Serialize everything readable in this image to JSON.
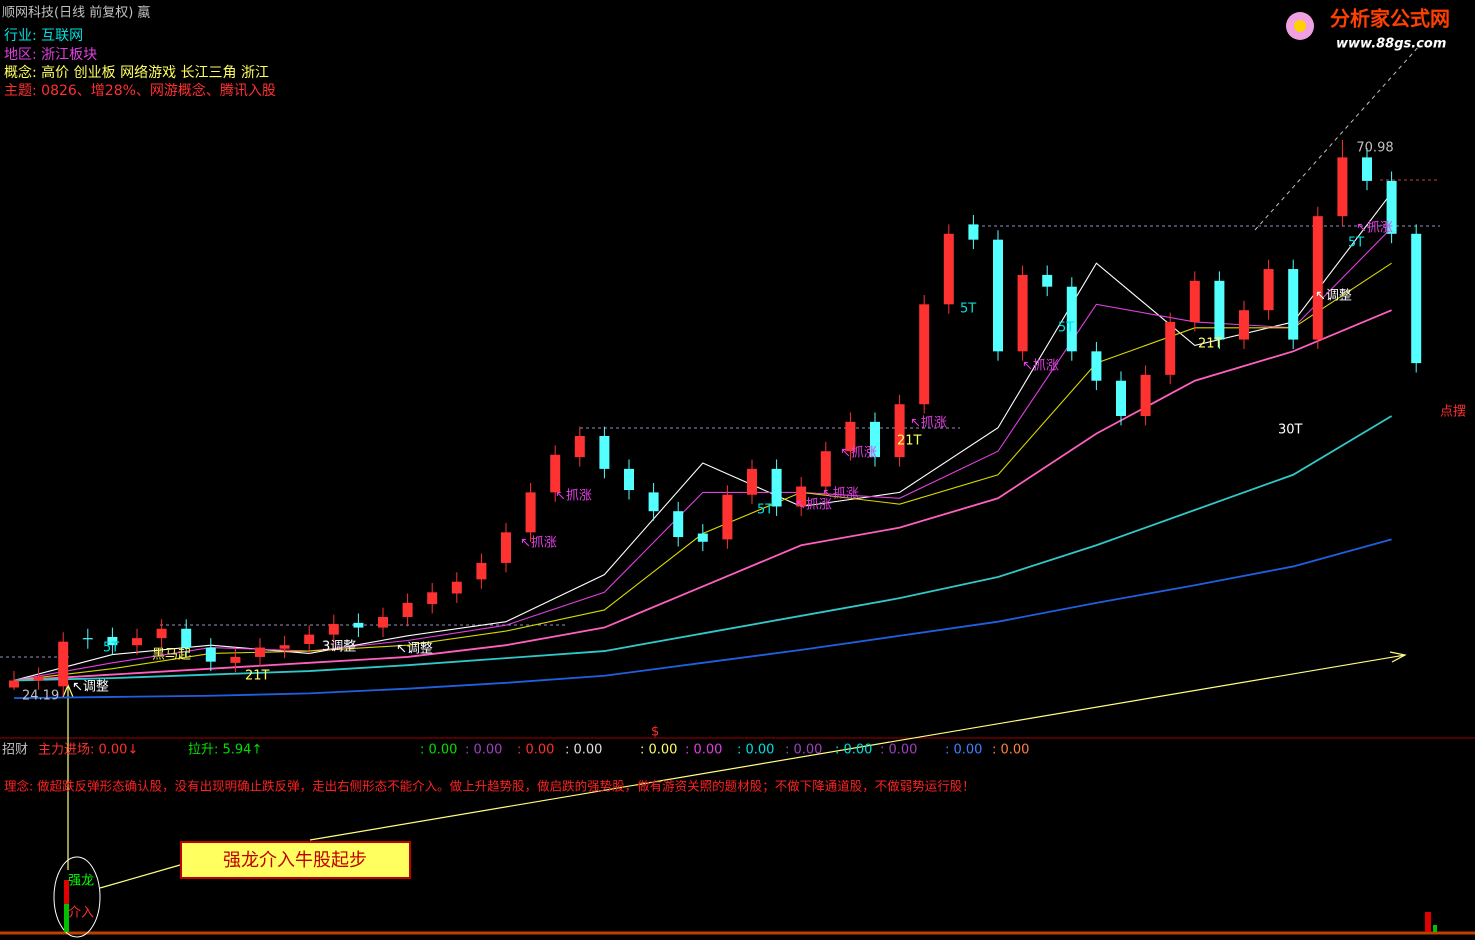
{
  "header": {
    "title": "顺网科技(日线 前复权) 蠃",
    "industry": "行业: 互联网",
    "region": "地区: 浙江板块",
    "concept": "概念: 高价 创业板 网络游戏 长江三角 浙江",
    "theme": "主题: 0826、增28%、网游概念、腾讯入股"
  },
  "logo": {
    "name": "分析家公式网",
    "url": "www.88gs.com"
  },
  "chart_data": {
    "type": "candlestick",
    "open": [
      24.4,
      25.0,
      24.5,
      28.6,
      28.7,
      28.0,
      28.6,
      29.4,
      27.8,
      26.5,
      27.0,
      27.7,
      28.1,
      28.9,
      29.9,
      29.5,
      30.4,
      31.5,
      32.4,
      33.6,
      35.0,
      37.6,
      41.0,
      44.0,
      45.8,
      43.0,
      41.0,
      39.4,
      37.5,
      37.0,
      40.8,
      43.0,
      39.8,
      41.5,
      44.5,
      47.0,
      44.0,
      48.5,
      57.0,
      63.8,
      62.5,
      53.0,
      59.5,
      58.5,
      53.0,
      50.5,
      47.5,
      51.0,
      55.5,
      59.0,
      54.0,
      56.5,
      60.0,
      54.0,
      64.5,
      69.5,
      67.5,
      63.0
    ],
    "high": [
      25.8,
      26.1,
      29.1,
      29.4,
      29.5,
      29.4,
      30.2,
      30.2,
      28.6,
      27.8,
      28.6,
      28.8,
      29.7,
      30.6,
      30.7,
      31.2,
      32.4,
      33.3,
      34.2,
      35.8,
      38.4,
      41.8,
      45.0,
      46.6,
      46.6,
      43.8,
      41.8,
      40.2,
      38.3,
      41.6,
      43.8,
      43.8,
      42.3,
      45.3,
      47.8,
      47.8,
      49.3,
      57.8,
      63.8,
      64.6,
      63.3,
      60.3,
      60.3,
      59.3,
      53.8,
      51.3,
      51.8,
      56.3,
      59.8,
      59.8,
      57.3,
      60.8,
      60.8,
      65.3,
      70.98,
      70.3,
      68.3,
      63.8
    ],
    "low": [
      24.19,
      24.2,
      23.7,
      27.7,
      27.2,
      27.2,
      27.8,
      27.0,
      25.8,
      25.7,
      26.2,
      26.9,
      27.3,
      28.1,
      28.7,
      28.7,
      29.6,
      30.7,
      31.6,
      32.8,
      34.2,
      36.8,
      40.2,
      43.2,
      42.2,
      40.4,
      38.6,
      36.4,
      36.0,
      36.2,
      40.0,
      39.0,
      39.0,
      40.7,
      43.7,
      43.2,
      43.2,
      47.7,
      56.2,
      61.7,
      52.2,
      52.2,
      57.7,
      52.2,
      49.7,
      46.7,
      46.7,
      50.2,
      54.7,
      53.2,
      53.2,
      55.7,
      53.2,
      53.2,
      63.7,
      66.7,
      62.2,
      51.2
    ],
    "close": [
      25.0,
      25.3,
      28.3,
      28.5,
      28.0,
      28.6,
      29.4,
      27.8,
      26.6,
      27.0,
      27.8,
      28.0,
      28.9,
      29.8,
      29.5,
      30.4,
      31.6,
      32.5,
      33.4,
      35.0,
      37.6,
      41.0,
      44.2,
      45.8,
      43.0,
      41.2,
      39.4,
      37.2,
      36.8,
      40.8,
      43.0,
      39.8,
      41.5,
      44.5,
      47.0,
      44.0,
      48.5,
      57.0,
      63.0,
      62.5,
      53.0,
      59.5,
      58.5,
      53.0,
      50.5,
      47.5,
      51.0,
      55.5,
      59.0,
      54.0,
      56.5,
      60.0,
      54.0,
      64.5,
      69.5,
      67.5,
      63.0,
      52.0
    ],
    "ylim": [
      20.36,
      82.89
    ],
    "ma": {
      "x": [
        0,
        4,
        8,
        12,
        16,
        20,
        24,
        28,
        32,
        36,
        40,
        44,
        48,
        52,
        56
      ],
      "series": [
        {
          "color": "#ffffff",
          "values": [
            25.0,
            27.2,
            28.0,
            27.3,
            28.8,
            30.0,
            34.0,
            43.5,
            39.8,
            41.0,
            46.5,
            60.5,
            53.5,
            55.5,
            66.5
          ]
        },
        {
          "color": "#e040e0",
          "values": [
            25.0,
            26.5,
            27.8,
            27.5,
            28.4,
            29.7,
            32.5,
            41.0,
            41.0,
            40.5,
            44.5,
            57.0,
            55.5,
            55.0,
            63.5
          ]
        },
        {
          "color": "#d8d800",
          "values": [
            25.0,
            26.0,
            27.3,
            27.5,
            28.0,
            29.2,
            31.0,
            37.5,
            41.0,
            40.0,
            42.5,
            52.0,
            55.0,
            55.0,
            60.5
          ]
        },
        {
          "color": "#ff60c0",
          "values": [
            25.0,
            25.5,
            26.0,
            26.5,
            27.0,
            28.0,
            29.5,
            33.0,
            36.5,
            38.0,
            40.5,
            46.0,
            50.5,
            53.0,
            56.5
          ]
        },
        {
          "color": "#30c8c8",
          "values": [
            25.0,
            25.2,
            25.5,
            25.8,
            26.3,
            26.9,
            27.5,
            29.0,
            30.5,
            32.0,
            33.8,
            36.5,
            39.5,
            42.5,
            47.5
          ]
        },
        {
          "color": "#2060e0",
          "values": [
            23.5,
            23.6,
            23.7,
            23.9,
            24.3,
            24.8,
            25.4,
            26.5,
            27.6,
            28.8,
            30.0,
            31.6,
            33.1,
            34.7,
            37.0
          ]
        }
      ]
    }
  },
  "annotations": [
    "↖调整",
    "5T",
    "黑马起",
    "21T",
    "3调整",
    "↖调整",
    "↖抓涨",
    "↖抓涨",
    "5T",
    "↖抓涨",
    "↖抓涨",
    "↖抓涨",
    "21T",
    "↖抓涨",
    "5T",
    "↖抓涨",
    "5T",
    "21T",
    "↖调整",
    "5T",
    "↖抓涨",
    "30T",
    "点摆"
  ],
  "indicator": {
    "name": "招财",
    "main": "主力进场: 0.00↓",
    "rise": "拉升: 5.94↑",
    "marker": "$",
    "values": [
      ": 0.00",
      ": 0.00",
      ": 0.00",
      ": 0.00",
      ": 0.00",
      ": 0.00",
      ": 0.00",
      ": 0.00",
      ": 0.00",
      ": 0.00",
      ": 0.00",
      ": 0.00"
    ]
  },
  "philosophy": "理念: 做超跌反弹形态确认股，没有出现明确止跌反弹，走出右侧形态不能介入。做上升趋势股，做启跌的强势股，做有游资关照的题材股；不做下降通道股，不做弱势运行股！",
  "callout": "强龙介入牛股起步",
  "signal": {
    "top": "强龙",
    "bottom": "介入"
  }
}
